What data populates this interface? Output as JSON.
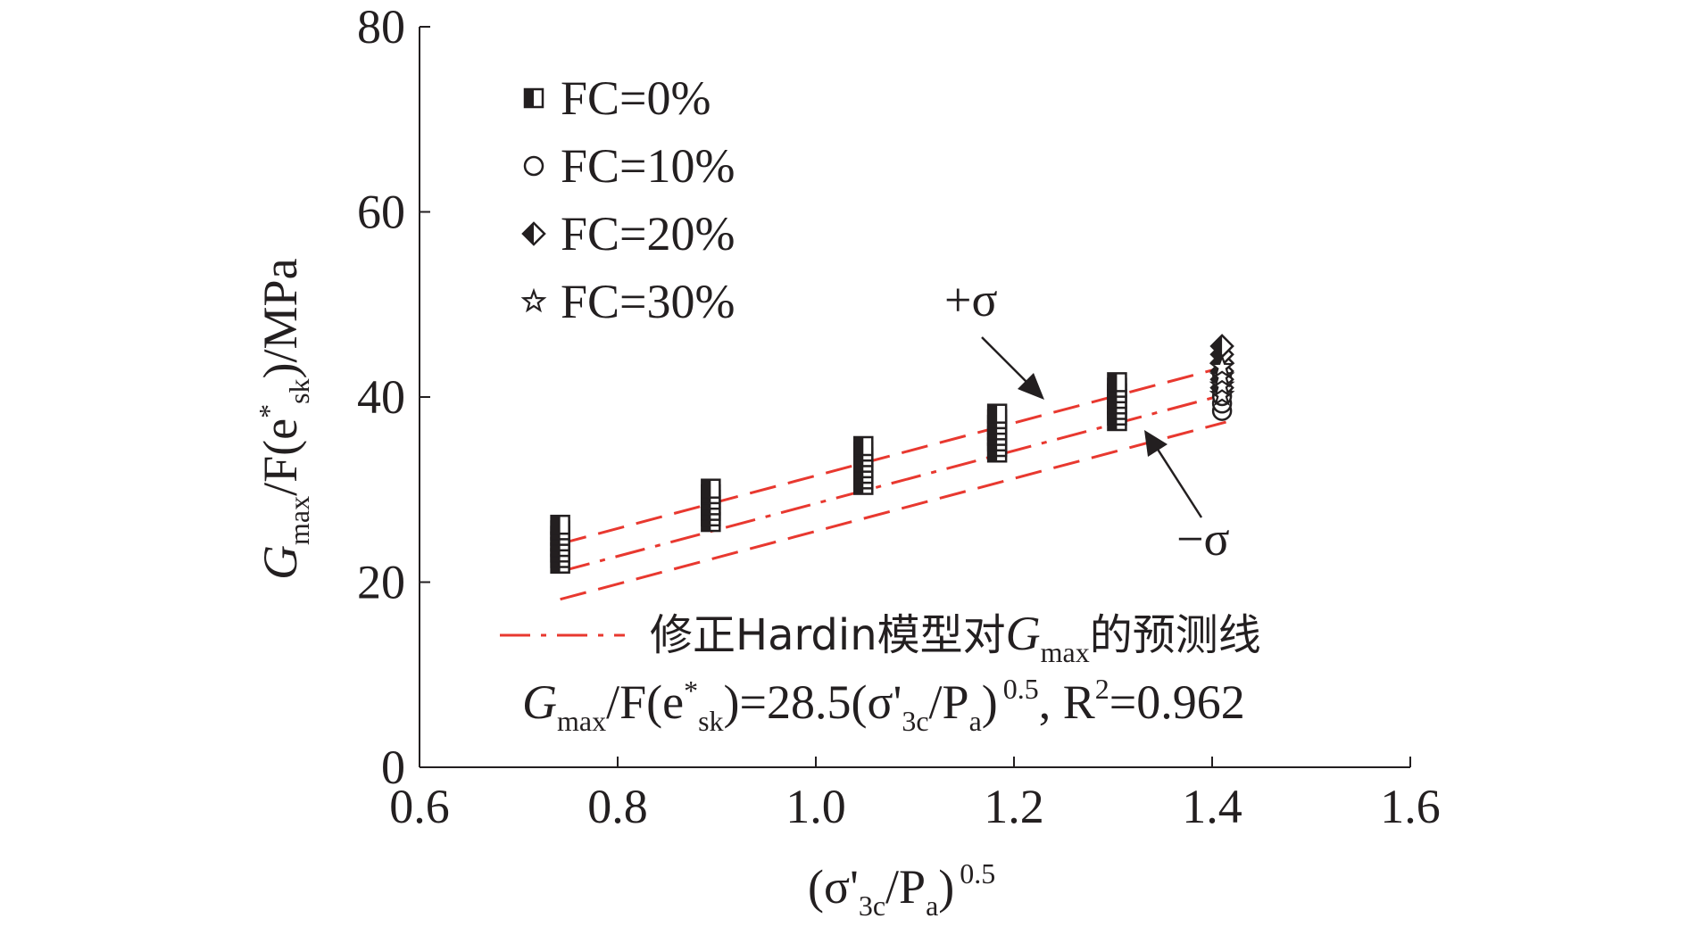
{
  "chart_data": {
    "type": "scatter",
    "title": "",
    "xlabel": {
      "open": "(σ'",
      "sub1": "3c",
      "mid": "/P",
      "sub2": "a",
      "close": ")",
      "sup": "0.5"
    },
    "ylabel": {
      "g": "G",
      "gsub": "max",
      "mid": "/F(e",
      "star": "*",
      "sk": "sk",
      "tail": ")/MPa"
    },
    "xlim": [
      0.6,
      1.6
    ],
    "ylim": [
      0,
      80
    ],
    "xticks": [
      0.6,
      0.8,
      1.0,
      1.2,
      1.4,
      1.6
    ],
    "xtick_labels": [
      "0.6",
      "0.8",
      "1.0",
      "1.2",
      "1.4",
      "1.6"
    ],
    "yticks": [
      0,
      20,
      40,
      60,
      80
    ],
    "ytick_labels": [
      "0",
      "20",
      "40",
      "60",
      "80"
    ],
    "series": [
      {
        "name": "FC=0%",
        "marker": "half-filled-square",
        "points": [
          [
            0.742,
            22.0
          ],
          [
            0.742,
            22.6
          ],
          [
            0.742,
            23.2
          ],
          [
            0.742,
            23.8
          ],
          [
            0.742,
            24.4
          ],
          [
            0.742,
            25.0
          ],
          [
            0.742,
            25.6
          ],
          [
            0.742,
            26.2
          ],
          [
            0.894,
            26.5
          ],
          [
            0.894,
            27.1
          ],
          [
            0.894,
            27.7
          ],
          [
            0.894,
            28.3
          ],
          [
            0.894,
            28.9
          ],
          [
            0.894,
            29.5
          ],
          [
            0.894,
            30.1
          ],
          [
            1.048,
            30.5
          ],
          [
            1.048,
            31.1
          ],
          [
            1.048,
            31.7
          ],
          [
            1.048,
            32.3
          ],
          [
            1.048,
            32.9
          ],
          [
            1.048,
            33.5
          ],
          [
            1.048,
            34.1
          ],
          [
            1.048,
            34.7
          ],
          [
            1.183,
            34.0
          ],
          [
            1.183,
            34.6
          ],
          [
            1.183,
            35.2
          ],
          [
            1.183,
            35.8
          ],
          [
            1.183,
            36.4
          ],
          [
            1.183,
            37.0
          ],
          [
            1.183,
            37.6
          ],
          [
            1.183,
            38.2
          ],
          [
            1.304,
            37.4
          ],
          [
            1.304,
            38.0
          ],
          [
            1.304,
            38.6
          ],
          [
            1.304,
            39.2
          ],
          [
            1.304,
            39.8
          ],
          [
            1.304,
            40.4
          ],
          [
            1.304,
            41.0
          ],
          [
            1.304,
            41.6
          ]
        ]
      },
      {
        "name": "FC=10%",
        "marker": "open-circle",
        "points": [
          [
            1.41,
            38.5
          ],
          [
            1.41,
            39.3
          ],
          [
            1.41,
            40.1
          ],
          [
            1.41,
            40.9
          ],
          [
            1.41,
            41.7
          ],
          [
            1.41,
            42.5
          ]
        ]
      },
      {
        "name": "FC=20%",
        "marker": "half-filled-diamond",
        "points": [
          [
            1.41,
            41.0
          ],
          [
            1.41,
            41.9
          ],
          [
            1.41,
            42.8
          ],
          [
            1.41,
            43.7
          ],
          [
            1.41,
            44.6
          ],
          [
            1.41,
            45.5
          ]
        ]
      },
      {
        "name": "FC=30%",
        "marker": "open-star",
        "points": [
          [
            1.41,
            40.2
          ],
          [
            1.41,
            41.2
          ],
          [
            1.41,
            42.2
          ],
          [
            1.41,
            43.2
          ]
        ]
      }
    ],
    "fit": {
      "legend_label_part1": "修正Hardin模型对",
      "legend_g": "G",
      "legend_gsub": "max",
      "legend_label_part2": "的预测线",
      "coefficient": 28.5,
      "r2": 0.962,
      "x_range": [
        0.742,
        1.414
      ],
      "sigma_offset": 3.0,
      "color": "#e8382f"
    },
    "equation": {
      "g": "G",
      "gsub": "max",
      "mid": "/F(e",
      "star": "*",
      "sk": "sk",
      "eq": ")=28.5(σ'",
      "sub3c": "3c",
      "pa": "/P",
      "suba": "a",
      "close": ")",
      "sup": "0.5",
      "comma": ", R",
      "sup2": "2",
      "r2": "=0.962"
    },
    "annotations": {
      "plus_sigma": "+σ",
      "minus_sigma": "−σ"
    },
    "colors": {
      "ink": "#231f20",
      "fit_line": "#e8382f"
    }
  }
}
